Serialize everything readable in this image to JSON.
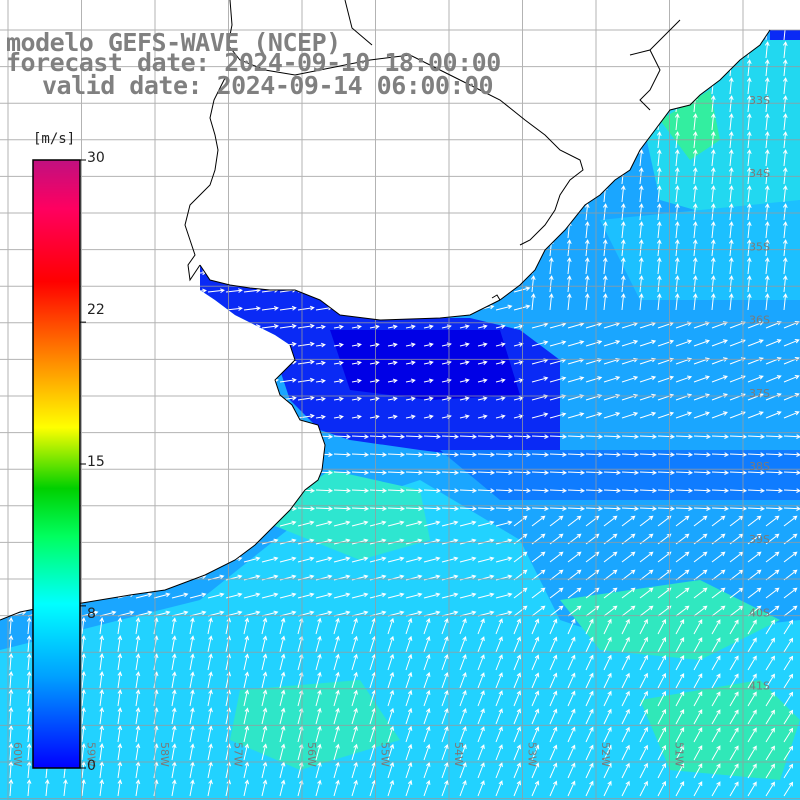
{
  "title": {
    "line1": "modelo GEFS-WAVE (NCEP)",
    "line2": "forecast date: 2024-09-10 18:00:00",
    "line3": "valid date: 2024-09-14 06:00:00"
  },
  "colorbar": {
    "unit": "[m/s]",
    "min": 0,
    "max": 30,
    "ticks": [
      "30",
      "22",
      "15",
      "8",
      "0"
    ],
    "tick_values": [
      30,
      22,
      15,
      8,
      0
    ],
    "colors": [
      "#0000ff",
      "#00a0ff",
      "#00ffff",
      "#00ff60",
      "#00d000",
      "#ffff00",
      "#ff8000",
      "#ff0000",
      "#ff0060",
      "#c01080"
    ]
  },
  "map": {
    "lat_labels": [
      "33S",
      "34S",
      "35S",
      "36S",
      "37S",
      "38S",
      "39S",
      "40S",
      "41S"
    ],
    "lon_labels": [
      "60W",
      "59W",
      "58W",
      "57W",
      "56W",
      "55W",
      "54W",
      "53W",
      "52W",
      "51W"
    ],
    "field": "wind speed [m/s] with direction arrows",
    "ocean_palette": {
      "calm": "#0a2af5",
      "moderate": "#1aa6ff",
      "fresh": "#22e6ff",
      "strong": "#2ef0a0"
    },
    "land_color": "#ffffff",
    "grid_color": "#a0a0a0",
    "arrow_color": "#ffffff"
  }
}
